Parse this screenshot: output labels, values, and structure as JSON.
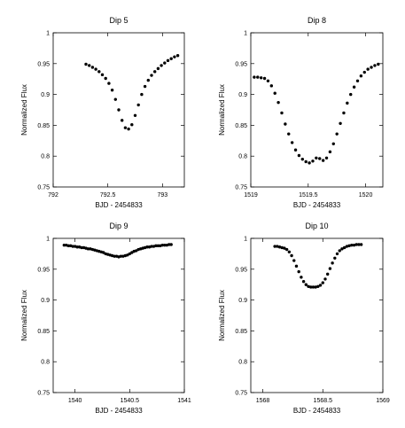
{
  "chart_data": [
    {
      "type": "scatter",
      "title": "Dip 5",
      "xlabel": "BJD - 2454833",
      "ylabel": "Normalized Flux",
      "xlim": [
        792,
        793.2
      ],
      "ylim": [
        0.75,
        1.0
      ],
      "xticks": [
        "792",
        "792.5",
        "793"
      ],
      "xtick_values": [
        792,
        792.5,
        793
      ],
      "yticks": [
        "0.75",
        "0.8",
        "0.85",
        "0.9",
        "0.95",
        "1"
      ],
      "ytick_values": [
        0.75,
        0.8,
        0.85,
        0.9,
        0.95,
        1.0
      ],
      "grid": false,
      "series": [
        {
          "color": "#000000",
          "x": [
            792.3,
            792.33,
            792.36,
            792.39,
            792.42,
            792.45,
            792.48,
            792.51,
            792.54,
            792.57,
            792.6,
            792.63,
            792.66,
            792.69,
            792.72,
            792.75,
            792.78,
            792.81,
            792.84,
            792.87,
            792.9,
            792.93,
            792.96,
            792.99,
            793.02,
            793.05,
            793.08,
            793.11,
            793.14
          ],
          "y": [
            0.949,
            0.947,
            0.944,
            0.941,
            0.937,
            0.932,
            0.926,
            0.918,
            0.907,
            0.892,
            0.875,
            0.858,
            0.846,
            0.844,
            0.851,
            0.866,
            0.883,
            0.9,
            0.913,
            0.923,
            0.931,
            0.937,
            0.942,
            0.947,
            0.951,
            0.955,
            0.958,
            0.961,
            0.963
          ]
        }
      ]
    },
    {
      "type": "scatter",
      "title": "Dip 8",
      "xlabel": "BJD - 2454833",
      "ylabel": "Normalized Flux",
      "xlim": [
        1519,
        1520.15
      ],
      "ylim": [
        0.75,
        1.0
      ],
      "xticks": [
        "1519",
        "1519.5",
        "1520"
      ],
      "xtick_values": [
        1519,
        1519.5,
        1520
      ],
      "yticks": [
        "0.75",
        "0.8",
        "0.85",
        "0.9",
        "0.95",
        "1"
      ],
      "ytick_values": [
        0.75,
        0.8,
        0.85,
        0.9,
        0.95,
        1.0
      ],
      "grid": false,
      "series": [
        {
          "color": "#000000",
          "x": [
            1519.03,
            1519.06,
            1519.09,
            1519.12,
            1519.15,
            1519.18,
            1519.21,
            1519.24,
            1519.27,
            1519.3,
            1519.33,
            1519.36,
            1519.39,
            1519.42,
            1519.45,
            1519.48,
            1519.51,
            1519.54,
            1519.57,
            1519.6,
            1519.63,
            1519.66,
            1519.69,
            1519.72,
            1519.75,
            1519.78,
            1519.81,
            1519.84,
            1519.87,
            1519.9,
            1519.93,
            1519.96,
            1519.99,
            1520.02,
            1520.05,
            1520.08,
            1520.11
          ],
          "y": [
            0.928,
            0.928,
            0.927,
            0.926,
            0.922,
            0.914,
            0.902,
            0.887,
            0.87,
            0.852,
            0.836,
            0.822,
            0.81,
            0.801,
            0.795,
            0.791,
            0.789,
            0.792,
            0.797,
            0.796,
            0.793,
            0.797,
            0.807,
            0.82,
            0.836,
            0.853,
            0.87,
            0.886,
            0.9,
            0.912,
            0.922,
            0.93,
            0.936,
            0.941,
            0.944,
            0.947,
            0.949
          ]
        }
      ]
    },
    {
      "type": "scatter",
      "title": "Dip 9",
      "xlabel": "BJD - 2454833",
      "ylabel": "Normalized Flux",
      "xlim": [
        1539.8,
        1541
      ],
      "ylim": [
        0.75,
        1.0
      ],
      "xticks": [
        "1540",
        "1540.5",
        "1541"
      ],
      "xtick_values": [
        1540,
        1540.5,
        1541
      ],
      "yticks": [
        "0.75",
        "0.8",
        "0.85",
        "0.9",
        "0.95",
        "1"
      ],
      "ytick_values": [
        0.75,
        0.8,
        0.85,
        0.9,
        0.95,
        1.0
      ],
      "grid": false,
      "series": [
        {
          "color": "#000000",
          "x": [
            1539.9,
            1539.92,
            1539.94,
            1539.96,
            1539.98,
            1540.0,
            1540.02,
            1540.04,
            1540.06,
            1540.08,
            1540.1,
            1540.12,
            1540.14,
            1540.16,
            1540.18,
            1540.2,
            1540.22,
            1540.24,
            1540.26,
            1540.28,
            1540.3,
            1540.32,
            1540.34,
            1540.36,
            1540.38,
            1540.4,
            1540.42,
            1540.44,
            1540.46,
            1540.48,
            1540.5,
            1540.52,
            1540.54,
            1540.56,
            1540.58,
            1540.6,
            1540.62,
            1540.64,
            1540.66,
            1540.68,
            1540.7,
            1540.72,
            1540.74,
            1540.76,
            1540.78,
            1540.8,
            1540.82,
            1540.84,
            1540.86,
            1540.88
          ],
          "y": [
            0.989,
            0.989,
            0.988,
            0.988,
            0.987,
            0.987,
            0.986,
            0.986,
            0.985,
            0.985,
            0.984,
            0.983,
            0.983,
            0.982,
            0.981,
            0.98,
            0.979,
            0.978,
            0.977,
            0.975,
            0.974,
            0.973,
            0.972,
            0.971,
            0.971,
            0.97,
            0.971,
            0.971,
            0.972,
            0.973,
            0.975,
            0.977,
            0.979,
            0.98,
            0.982,
            0.983,
            0.984,
            0.985,
            0.986,
            0.986,
            0.987,
            0.987,
            0.988,
            0.988,
            0.988,
            0.989,
            0.989,
            0.989,
            0.99,
            0.99
          ]
        }
      ]
    },
    {
      "type": "scatter",
      "title": "Dip 10",
      "xlabel": "BJD - 2454833",
      "ylabel": "Normalized Flux",
      "xlim": [
        1567.9,
        1569
      ],
      "ylim": [
        0.75,
        1.0
      ],
      "xticks": [
        "1568",
        "1568.5",
        "1569"
      ],
      "xtick_values": [
        1568,
        1568.5,
        1569
      ],
      "yticks": [
        "0.75",
        "0.8",
        "0.85",
        "0.9",
        "0.95",
        "1"
      ],
      "ytick_values": [
        0.75,
        0.8,
        0.85,
        0.9,
        0.95,
        1.0
      ],
      "grid": false,
      "series": [
        {
          "color": "#000000",
          "x": [
            1568.1,
            1568.12,
            1568.14,
            1568.16,
            1568.18,
            1568.2,
            1568.22,
            1568.24,
            1568.26,
            1568.28,
            1568.3,
            1568.32,
            1568.34,
            1568.36,
            1568.38,
            1568.4,
            1568.42,
            1568.44,
            1568.46,
            1568.48,
            1568.5,
            1568.52,
            1568.54,
            1568.56,
            1568.58,
            1568.6,
            1568.62,
            1568.64,
            1568.66,
            1568.68,
            1568.7,
            1568.72,
            1568.74,
            1568.76,
            1568.78,
            1568.8,
            1568.82
          ],
          "y": [
            0.987,
            0.987,
            0.986,
            0.985,
            0.984,
            0.982,
            0.978,
            0.972,
            0.964,
            0.955,
            0.946,
            0.937,
            0.93,
            0.925,
            0.922,
            0.921,
            0.921,
            0.921,
            0.922,
            0.924,
            0.928,
            0.934,
            0.942,
            0.951,
            0.96,
            0.968,
            0.975,
            0.98,
            0.983,
            0.985,
            0.987,
            0.988,
            0.989,
            0.989,
            0.99,
            0.99,
            0.99
          ]
        }
      ]
    }
  ]
}
